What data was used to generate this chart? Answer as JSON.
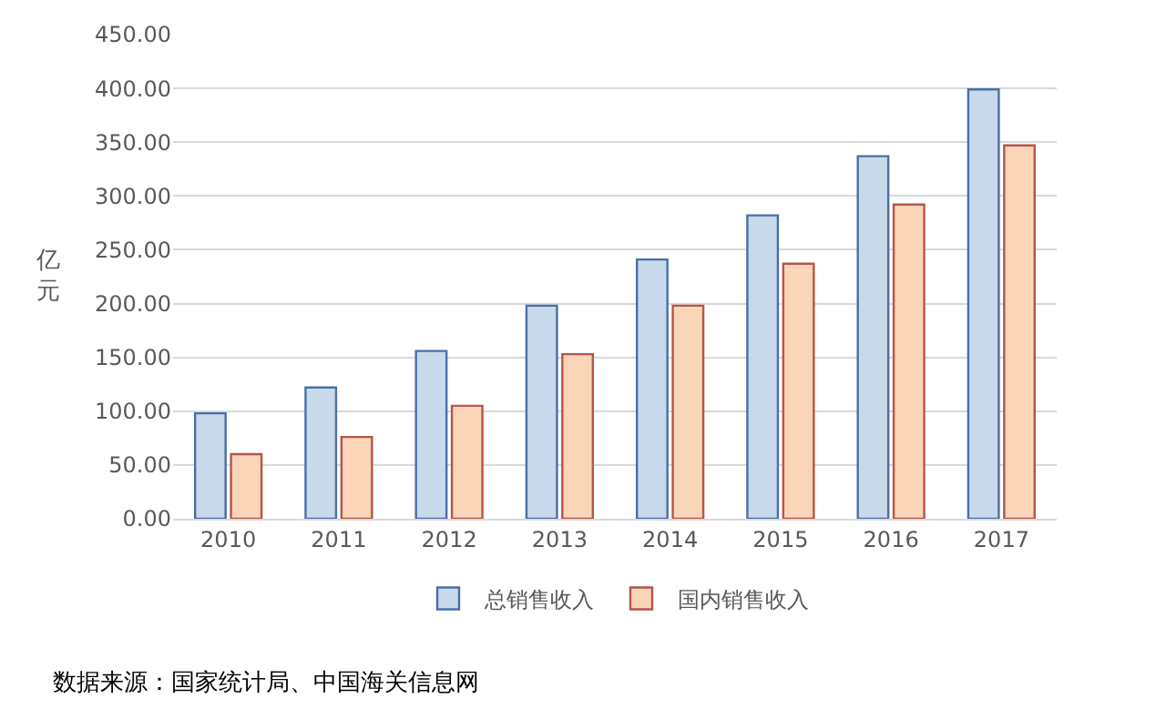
{
  "chart_data": {
    "type": "bar",
    "ylabel": "亿元",
    "categories": [
      "2010",
      "2011",
      "2012",
      "2013",
      "2014",
      "2015",
      "2016",
      "2017"
    ],
    "series": [
      {
        "name": "总销售收入",
        "color": "#c9d9ec",
        "values": [
          98,
          122,
          156,
          198,
          241,
          282,
          337,
          399
        ]
      },
      {
        "name": "国内销售收入",
        "color": "#fbd5b8",
        "values": [
          60,
          76,
          105,
          153,
          198,
          237,
          292,
          347
        ]
      }
    ],
    "ylim": [
      0,
      450
    ],
    "yticks": [
      {
        "value": 0,
        "label": "0.00"
      },
      {
        "value": 50,
        "label": "50.00"
      },
      {
        "value": 100,
        "label": "100.00"
      },
      {
        "value": 150,
        "label": "150.00"
      },
      {
        "value": 200,
        "label": "200.00"
      },
      {
        "value": 250,
        "label": "250.00"
      },
      {
        "value": 300,
        "label": "300.00"
      },
      {
        "value": 350,
        "label": "350.00"
      },
      {
        "value": 400,
        "label": "400.00"
      },
      {
        "value": 450,
        "label": "450.00"
      }
    ],
    "grid": "y",
    "legend": "bottom",
    "annotations": [
      "数据来源：国家统计局、中国海关信息网"
    ]
  }
}
